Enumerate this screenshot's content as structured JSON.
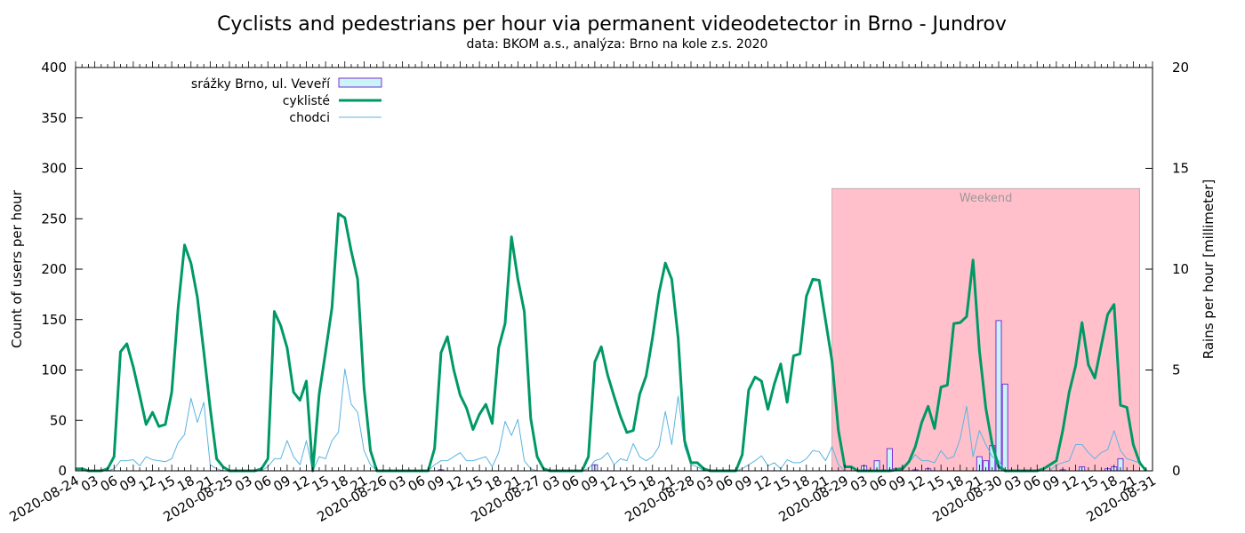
{
  "chart_data": {
    "type": "line",
    "title": "Cyclists and pedestrians per hour via permanent videodetector in Brno - Jundrov",
    "subtitle": "data: BKOM a.s., analýza: Brno na kole z.s. 2020",
    "ylabel": "Count of users per hour",
    "y2label": "Rains per hour [millimeter]",
    "ylim": [
      0,
      400
    ],
    "y2lim": [
      0,
      20
    ],
    "yticks": [
      "0",
      "50",
      "100",
      "150",
      "200",
      "250",
      "300",
      "350",
      "400"
    ],
    "y2ticks": [
      "0",
      "5",
      "10",
      "15",
      "20"
    ],
    "x_hour_range": [
      0,
      168
    ],
    "date_labels": [
      {
        "hour": 0,
        "text": "2020-08-24"
      },
      {
        "hour": 24,
        "text": "2020-08-25"
      },
      {
        "hour": 48,
        "text": "2020-08-26"
      },
      {
        "hour": 72,
        "text": "2020-08-27"
      },
      {
        "hour": 96,
        "text": "2020-08-28"
      },
      {
        "hour": 120,
        "text": "2020-08-29"
      },
      {
        "hour": 144,
        "text": "2020-08-30"
      },
      {
        "hour": 168,
        "text": "2020-08-31"
      }
    ],
    "hour_tick_labels": [
      "03",
      "06",
      "09",
      "12",
      "15",
      "18",
      "21"
    ],
    "weekend": {
      "label": "Weekend",
      "from_hour": 118,
      "to_hour": 166,
      "top_value": 280,
      "color": "#ffc0cb"
    },
    "legend": {
      "position": "top-left",
      "items": [
        {
          "label": "srážky Brno, ul. Veveří",
          "kind": "bar"
        },
        {
          "label": "cyklisté",
          "kind": "thick-line"
        },
        {
          "label": "chodci",
          "kind": "thin-line"
        }
      ]
    },
    "colors": {
      "cyclists": "#009966",
      "pedestrians": "#5ab4e0",
      "rain_fill": "#c8f4fa",
      "rain_edge": "#7b2fd6",
      "weekend": "#ffc0cb"
    },
    "series": [
      {
        "name": "cyklisté",
        "values": [
          2,
          2,
          0,
          0,
          0,
          2,
          14,
          118,
          126,
          103,
          75,
          46,
          58,
          44,
          46,
          78,
          162,
          224,
          206,
          172,
          118,
          62,
          12,
          4,
          0,
          0,
          0,
          0,
          0,
          2,
          12,
          158,
          144,
          122,
          78,
          70,
          89,
          0,
          76,
          118,
          162,
          255,
          251,
          218,
          190,
          82,
          20,
          0,
          0,
          0,
          0,
          0,
          0,
          0,
          0,
          0,
          22,
          117,
          133,
          100,
          75,
          62,
          41,
          56,
          66,
          47,
          122,
          146,
          232,
          190,
          158,
          52,
          14,
          2,
          0,
          0,
          0,
          0,
          0,
          0,
          14,
          108,
          123,
          95,
          74,
          54,
          38,
          40,
          76,
          94,
          132,
          176,
          206,
          190,
          132,
          30,
          8,
          8,
          2,
          0,
          0,
          0,
          0,
          0,
          16,
          80,
          93,
          89,
          61,
          86,
          106,
          68,
          114,
          116,
          173,
          190,
          189,
          149,
          109,
          40,
          4,
          4,
          0,
          0,
          0,
          0,
          0,
          0,
          1,
          2,
          9,
          24,
          48,
          64,
          42,
          83,
          85,
          146,
          147,
          153,
          209,
          119,
          62,
          26,
          4,
          0,
          0,
          0,
          0,
          0,
          0,
          2,
          6,
          10,
          40,
          78,
          104,
          147,
          105,
          92,
          124,
          155,
          165,
          65,
          63,
          26,
          8,
          0
        ]
      },
      {
        "name": "chodci",
        "values": [
          0,
          0,
          0,
          0,
          0,
          0,
          2,
          10,
          10,
          11,
          5,
          14,
          11,
          10,
          9,
          12,
          28,
          36,
          72,
          48,
          68,
          6,
          2,
          0,
          0,
          0,
          0,
          0,
          0,
          0,
          4,
          12,
          12,
          30,
          14,
          6,
          30,
          0,
          14,
          12,
          30,
          38,
          101,
          66,
          58,
          20,
          6,
          0,
          0,
          0,
          0,
          0,
          0,
          0,
          0,
          0,
          6,
          10,
          10,
          14,
          18,
          10,
          10,
          12,
          14,
          4,
          18,
          49,
          35,
          51,
          10,
          2,
          0,
          0,
          0,
          0,
          0,
          0,
          0,
          0,
          2,
          10,
          12,
          18,
          6,
          12,
          10,
          27,
          14,
          10,
          14,
          24,
          59,
          26,
          74,
          24,
          6,
          4,
          0,
          0,
          0,
          0,
          0,
          0,
          2,
          6,
          10,
          15,
          5,
          8,
          2,
          11,
          8,
          8,
          12,
          20,
          19,
          10,
          24,
          6,
          0,
          0,
          0,
          0,
          0,
          0,
          0,
          0,
          2,
          4,
          8,
          16,
          10,
          10,
          8,
          20,
          12,
          14,
          32,
          64,
          14,
          40,
          26,
          14,
          10,
          0,
          0,
          0,
          0,
          0,
          0,
          0,
          0,
          6,
          8,
          10,
          26,
          26,
          18,
          12,
          18,
          21,
          40,
          20,
          12,
          10,
          8,
          0
        ]
      },
      {
        "name": "srážky Brno, ul. Veveří",
        "kind": "rain-bars",
        "values_mm": [
          {
            "hour": 57,
            "mm": 0.05
          },
          {
            "hour": 81,
            "mm": 0.3
          },
          {
            "hour": 123,
            "mm": 0.25
          },
          {
            "hour": 125,
            "mm": 0.5
          },
          {
            "hour": 127,
            "mm": 1.1
          },
          {
            "hour": 128,
            "mm": 0.1
          },
          {
            "hour": 131,
            "mm": 0.05
          },
          {
            "hour": 133,
            "mm": 0.1
          },
          {
            "hour": 141,
            "mm": 0.7
          },
          {
            "hour": 142,
            "mm": 0.5
          },
          {
            "hour": 143,
            "mm": 1.25
          },
          {
            "hour": 144,
            "mm": 7.45
          },
          {
            "hour": 145,
            "mm": 4.3
          },
          {
            "hour": 154,
            "mm": 0.05
          },
          {
            "hour": 157,
            "mm": 0.2
          },
          {
            "hour": 161,
            "mm": 0.1
          },
          {
            "hour": 162,
            "mm": 0.2
          },
          {
            "hour": 163,
            "mm": 0.6
          }
        ]
      }
    ]
  }
}
